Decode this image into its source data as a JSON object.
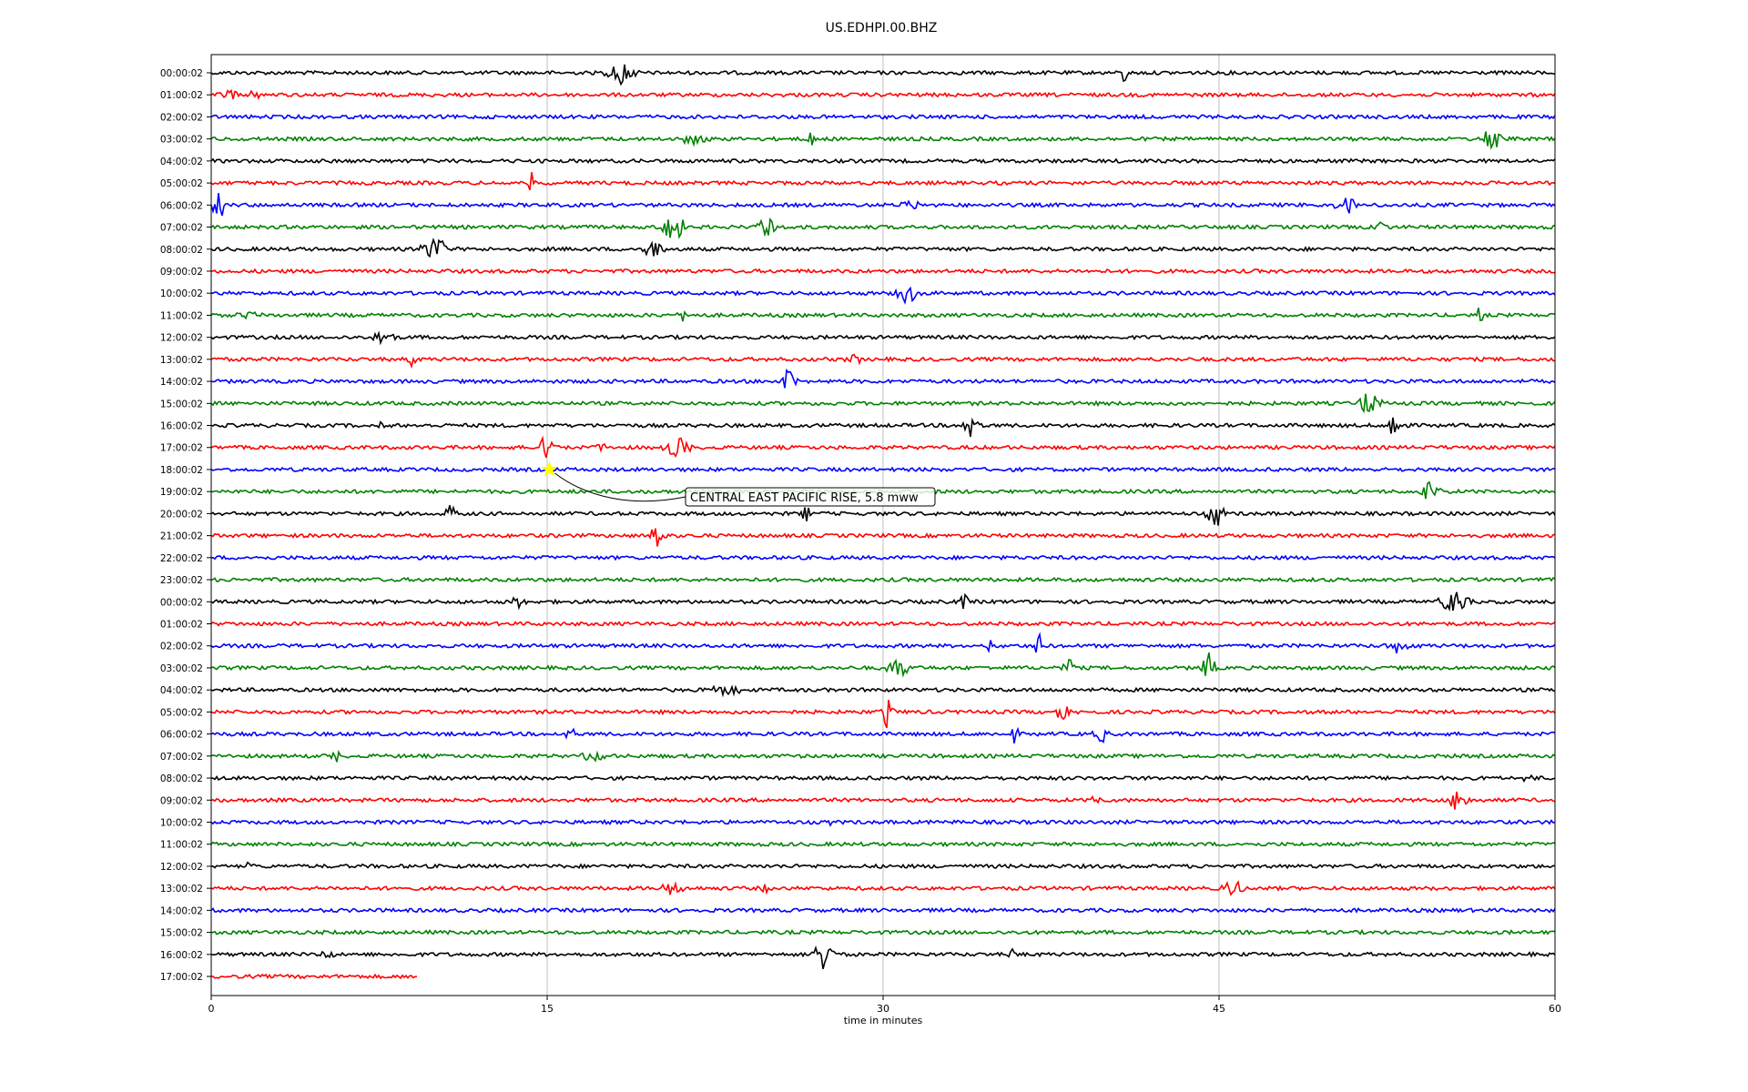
{
  "chart_data": {
    "type": "line",
    "title": "US.EDHPI.00.BHZ",
    "xlabel": "time in minutes",
    "ylabel": "",
    "xlim": [
      0,
      60
    ],
    "x_ticks": [
      "0",
      "15",
      "30",
      "45",
      "60"
    ],
    "grid": "vertical",
    "trace_colors": [
      "#000000",
      "#ff0000",
      "#0000ff",
      "#008000"
    ],
    "row_labels": [
      "00:00:02",
      "01:00:02",
      "02:00:02",
      "03:00:02",
      "04:00:02",
      "05:00:02",
      "06:00:02",
      "07:00:02",
      "08:00:02",
      "09:00:02",
      "10:00:02",
      "11:00:02",
      "12:00:02",
      "13:00:02",
      "14:00:02",
      "15:00:02",
      "16:00:02",
      "17:00:02",
      "18:00:02",
      "19:00:02",
      "20:00:02",
      "21:00:02",
      "22:00:02",
      "23:00:02",
      "00:00:02",
      "01:00:02",
      "02:00:02",
      "03:00:02",
      "04:00:02",
      "05:00:02",
      "06:00:02",
      "07:00:02",
      "08:00:02",
      "09:00:02",
      "10:00:02",
      "11:00:02",
      "12:00:02",
      "13:00:02",
      "14:00:02",
      "15:00:02",
      "16:00:02",
      "17:00:02"
    ],
    "last_row_end_minute": 9.2,
    "event": {
      "label": "CENTRAL EAST PACIFIC RISE, 5.8 mww",
      "row": 18,
      "minute": 15.1,
      "marker_color": "#ffff00"
    }
  }
}
